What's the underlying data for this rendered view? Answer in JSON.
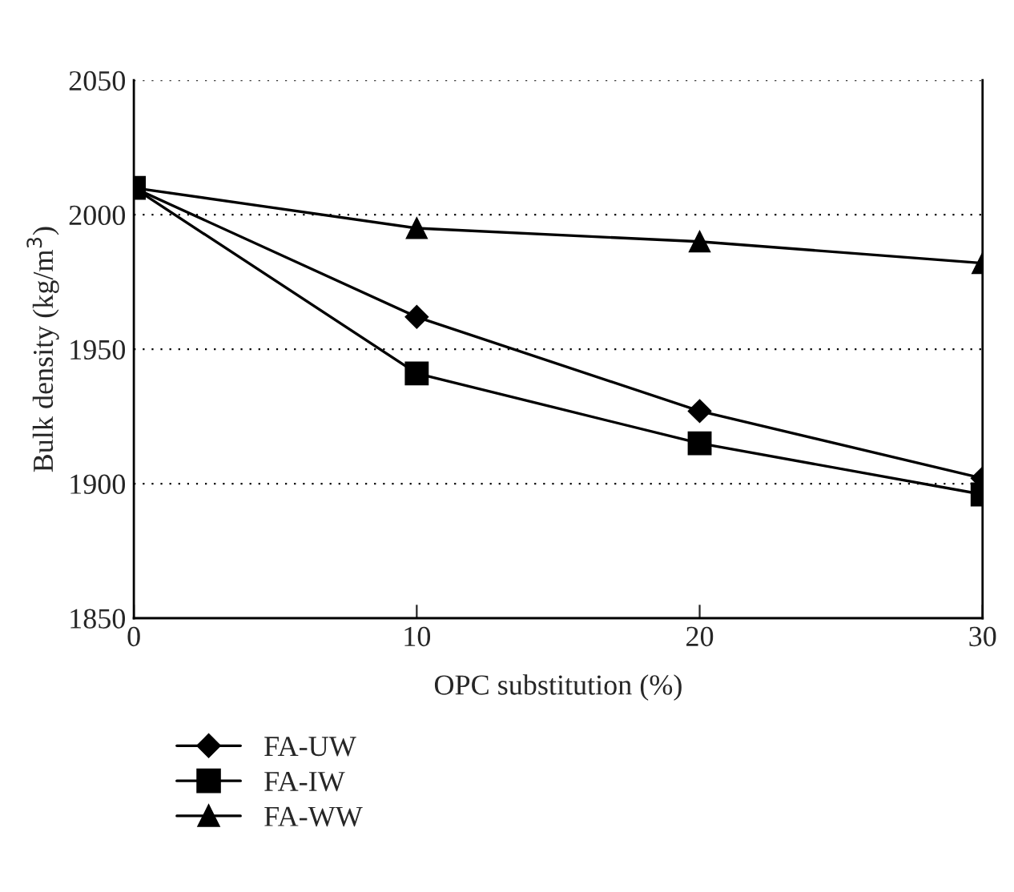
{
  "chart_data": {
    "type": "line",
    "xlabel": "OPC substitution (%)",
    "ylabel": "Bulk density (kg/m$^{3}$)",
    "x": [
      0,
      10,
      20,
      30
    ],
    "series": [
      {
        "name": "FA-UW",
        "color": "#000000",
        "marker": "diamond",
        "values": [
          2010,
          1962,
          1927,
          1902
        ]
      },
      {
        "name": "FA-IW",
        "color": "#000000",
        "marker": "square",
        "values": [
          2010,
          1941,
          1915,
          1896
        ]
      },
      {
        "name": "FA-WW",
        "color": "#000000",
        "marker": "triangle",
        "values": [
          2010,
          1995,
          1990,
          1982
        ]
      }
    ],
    "xlim": [
      0,
      30
    ],
    "xticks": [
      0,
      10,
      20,
      30
    ],
    "ylim": [
      1850,
      2050
    ],
    "yticks": [
      1850,
      1900,
      1950,
      2000,
      2050
    ],
    "grid": "y",
    "legend": "bottom",
    "line_style": "solid"
  }
}
